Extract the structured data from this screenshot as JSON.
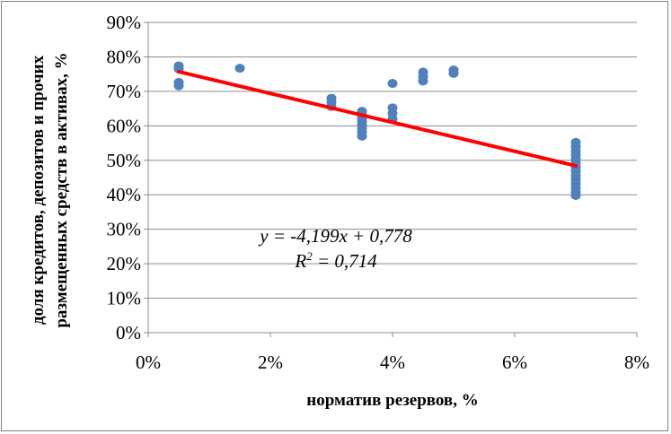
{
  "chart_data": {
    "type": "scatter",
    "xlabel": "норматив резервов, %",
    "ylabel": "доля кредитов, депозитов и прочих размещенных средств в активах, %",
    "ylabel_lines": [
      "доля кредитов, депозитов и прочих",
      "размещенных средств в активах, %"
    ],
    "xlim": [
      0,
      0.08
    ],
    "ylim": [
      0,
      0.9
    ],
    "x_ticks": [
      0,
      0.02,
      0.04,
      0.06,
      0.08
    ],
    "x_tick_labels": [
      "0%",
      "2%",
      "4%",
      "6%",
      "8%"
    ],
    "y_ticks": [
      0,
      0.1,
      0.2,
      0.3,
      0.4,
      0.5,
      0.6,
      0.7,
      0.8,
      0.9
    ],
    "y_tick_labels": [
      "0%",
      "10%",
      "20%",
      "30%",
      "40%",
      "50%",
      "60%",
      "70%",
      "80%",
      "90%"
    ],
    "grid": "horizontal",
    "legend": "none",
    "series": [
      {
        "color": "#4f81bd",
        "points": [
          [
            0.005,
            0.774
          ],
          [
            0.005,
            0.765
          ],
          [
            0.005,
            0.726
          ],
          [
            0.005,
            0.716
          ],
          [
            0.015,
            0.767
          ],
          [
            0.03,
            0.68
          ],
          [
            0.03,
            0.668
          ],
          [
            0.03,
            0.656
          ],
          [
            0.035,
            0.642
          ],
          [
            0.035,
            0.632
          ],
          [
            0.035,
            0.622
          ],
          [
            0.035,
            0.612
          ],
          [
            0.035,
            0.602
          ],
          [
            0.035,
            0.592
          ],
          [
            0.035,
            0.582
          ],
          [
            0.035,
            0.57
          ],
          [
            0.04,
            0.723
          ],
          [
            0.04,
            0.652
          ],
          [
            0.04,
            0.636
          ],
          [
            0.04,
            0.62
          ],
          [
            0.045,
            0.756
          ],
          [
            0.045,
            0.743
          ],
          [
            0.045,
            0.73
          ],
          [
            0.05,
            0.762
          ],
          [
            0.05,
            0.752
          ],
          [
            0.07,
            0.552
          ],
          [
            0.07,
            0.54
          ],
          [
            0.07,
            0.528
          ],
          [
            0.07,
            0.516
          ],
          [
            0.07,
            0.504
          ],
          [
            0.07,
            0.492
          ],
          [
            0.07,
            0.48
          ],
          [
            0.07,
            0.468
          ],
          [
            0.07,
            0.456
          ],
          [
            0.07,
            0.444
          ],
          [
            0.07,
            0.432
          ],
          [
            0.07,
            0.42
          ],
          [
            0.07,
            0.408
          ],
          [
            0.07,
            0.398
          ]
        ]
      }
    ],
    "trendline": {
      "color": "#ff0000",
      "slope": -4.199,
      "intercept": 0.778,
      "x_range": [
        0.005,
        0.07
      ]
    },
    "annotations": [
      "y = -4,199x + 0,778",
      "R² = 0,714"
    ]
  }
}
